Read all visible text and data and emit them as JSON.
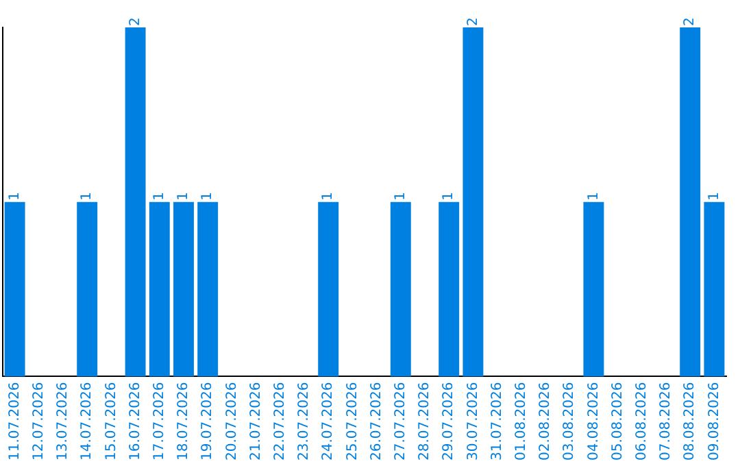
{
  "chart_data": {
    "type": "bar",
    "categories": [
      "11.07.2026",
      "12.07.2026",
      "13.07.2026",
      "14.07.2026",
      "15.07.2026",
      "16.07.2026",
      "17.07.2026",
      "18.07.2026",
      "19.07.2026",
      "20.07.2026",
      "21.07.2026",
      "22.07.2026",
      "23.07.2026",
      "24.07.2026",
      "25.07.2026",
      "26.07.2026",
      "27.07.2026",
      "28.07.2026",
      "29.07.2026",
      "30.07.2026",
      "31.07.2026",
      "01.08.2026",
      "02.08.2026",
      "03.08.2026",
      "04.08.2026",
      "05.08.2026",
      "06.08.2026",
      "07.08.2026",
      "08.08.2026",
      "09.08.2026"
    ],
    "values": [
      1,
      0,
      0,
      1,
      0,
      2,
      1,
      1,
      1,
      0,
      0,
      0,
      0,
      1,
      0,
      0,
      1,
      0,
      1,
      2,
      0,
      0,
      0,
      0,
      1,
      0,
      0,
      0,
      2,
      1
    ],
    "value_labels": [
      "1",
      null,
      null,
      "1",
      null,
      "2",
      "1",
      "1",
      "1",
      null,
      null,
      null,
      null,
      "1",
      null,
      null,
      "1",
      null,
      "1",
      "2",
      null,
      null,
      null,
      null,
      "1",
      null,
      null,
      null,
      "2",
      "1"
    ],
    "color": "#0080e0",
    "tick_labels": "x",
    "grid": false,
    "legend": false
  }
}
